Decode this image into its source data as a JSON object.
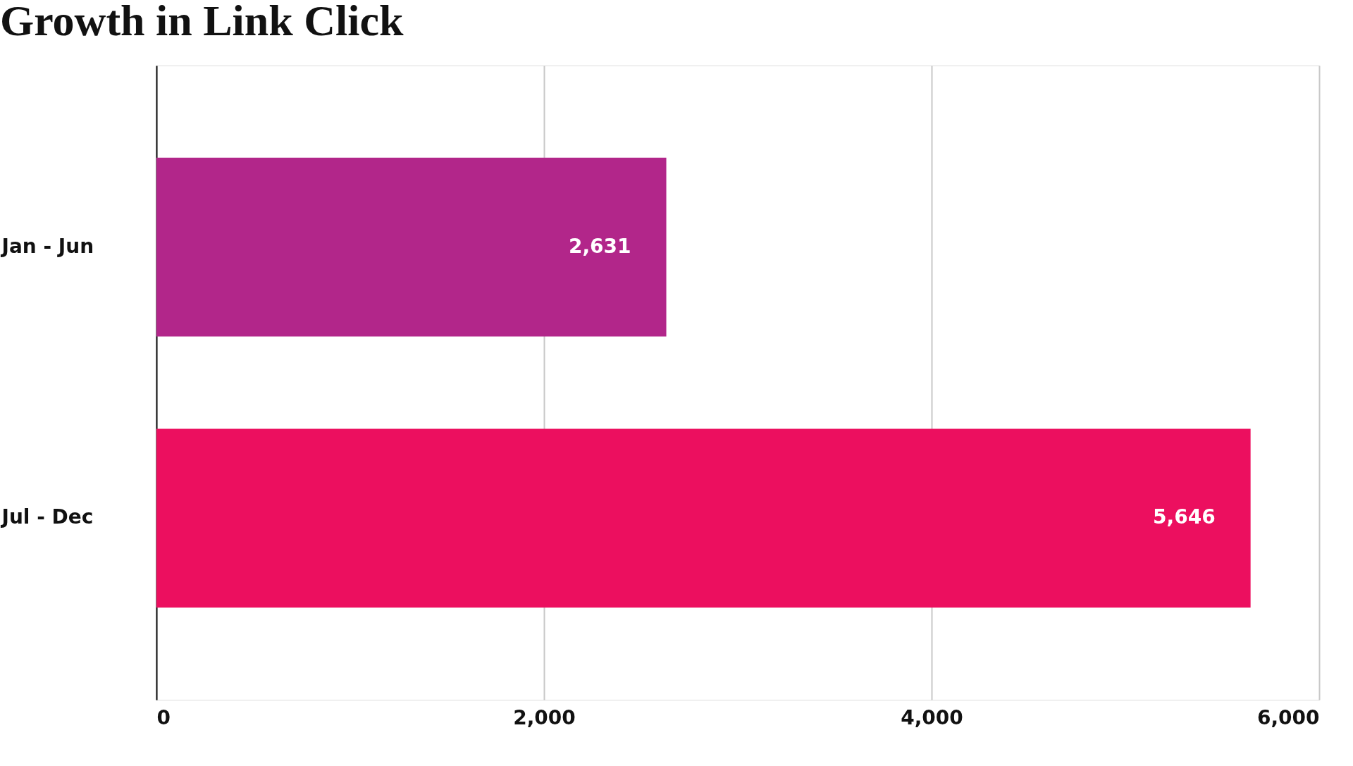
{
  "chart_data": {
    "type": "bar",
    "orientation": "horizontal",
    "title": "Growth in Link Click",
    "categories": [
      "Jan - Jun",
      "Jul - Dec"
    ],
    "values": [
      2631,
      5646
    ],
    "value_labels": [
      "2,631",
      "5,646"
    ],
    "colors": [
      "#b2268a",
      "#ec0f5f"
    ],
    "xlim": [
      0,
      6000
    ],
    "xticks": [
      0,
      {
        "value": 2000,
        "label": "2,000"
      },
      {
        "value": 4000,
        "label": "4,000"
      },
      {
        "value": 6000,
        "label": "6,000"
      }
    ],
    "grid": "x",
    "legend": false
  }
}
